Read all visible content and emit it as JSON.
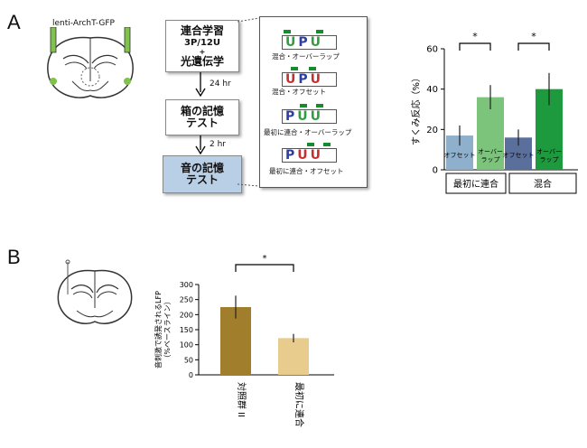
{
  "panel_a": {
    "letter": "A",
    "virus_label": "lenti-ArchT-GFP",
    "flow": {
      "box1_line1": "連合学習",
      "box1_line2": "3P/12U",
      "box1_line3": "+",
      "box1_line4": "光遺伝学",
      "arrow1": "24 hr",
      "box2_line1": "箱の記憶",
      "box2_line2": "テスト",
      "arrow2": "2 hr",
      "box3_line1": "音の記憶",
      "box3_line2": "テスト"
    },
    "sequences": [
      {
        "letters": "UPU",
        "label": "混合・オーバーラップ"
      },
      {
        "letters": "UPU",
        "label": "混合・オフセット"
      },
      {
        "letters": "PUU",
        "label": "最初に連合・オーバーラップ"
      },
      {
        "letters": "PUU",
        "label": "最初に連合・オフセット"
      }
    ]
  },
  "panel_b": {
    "letter": "B"
  },
  "chart_data": [
    {
      "type": "bar",
      "ylabel": "すくみ反応（%）",
      "ylim": [
        0,
        60
      ],
      "yticks": [
        0,
        20,
        40,
        60
      ],
      "significance": [
        "*",
        "*"
      ],
      "groups": [
        "最初に連合",
        "混合"
      ],
      "categories": [
        "オフセット",
        "オーバー ラップ",
        "オフセット",
        "オーバー ラップ"
      ],
      "values": [
        17,
        36,
        16,
        40
      ],
      "errors": [
        5,
        6,
        4,
        8
      ],
      "colors": [
        "#8fb0cc",
        "#7cc47c",
        "#5b6f9c",
        "#1e9a3e"
      ]
    },
    {
      "type": "bar",
      "ylabel": "音刺激で誘発されるLFP",
      "ylabel2": "（%ベースライン）",
      "ylim": [
        0,
        300
      ],
      "yticks": [
        0,
        50,
        100,
        150,
        200,
        250,
        300
      ],
      "significance": [
        "*"
      ],
      "categories": [
        "対照群 II",
        "最初に連合"
      ],
      "values": [
        225,
        122
      ],
      "errors": [
        38,
        14
      ],
      "colors": [
        "#a07e2c",
        "#e8cc8e"
      ]
    }
  ]
}
